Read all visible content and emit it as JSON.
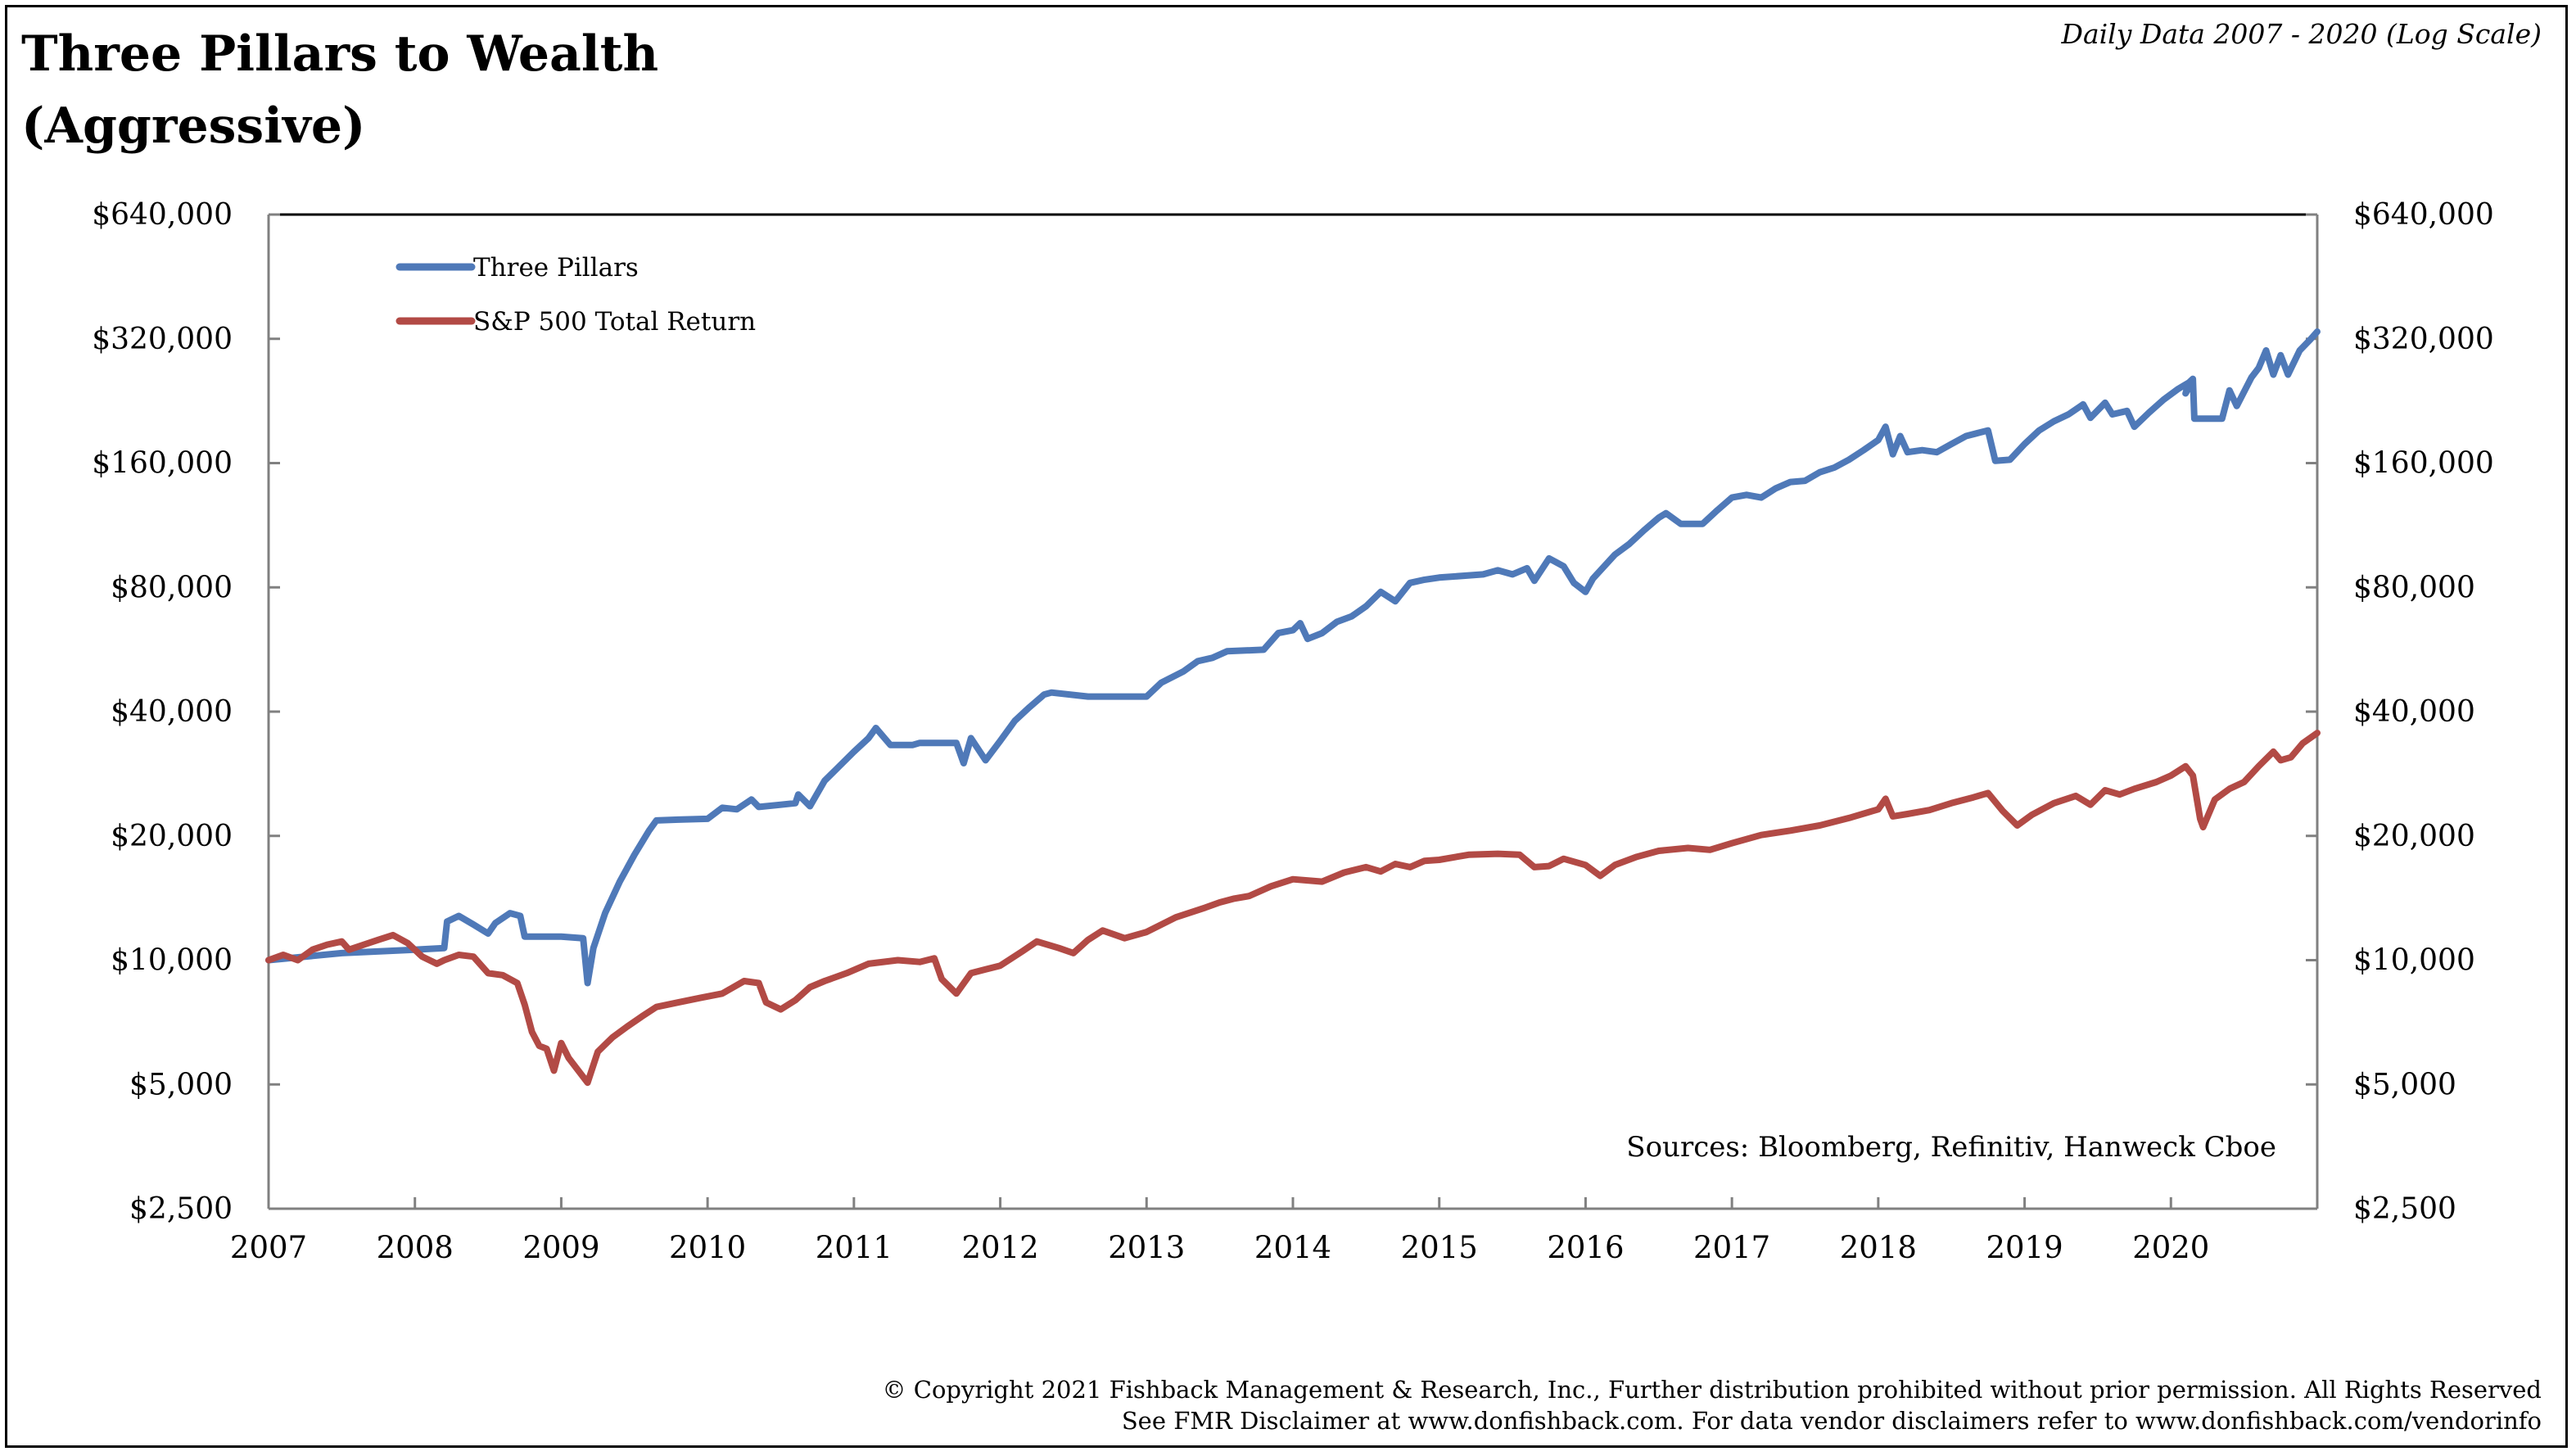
{
  "header": {
    "title_line1": "Three Pillars to Wealth",
    "title_line2": "(Aggressive)",
    "subtitle": "Daily Data 2007 - 2020 (Log Scale)"
  },
  "footer": {
    "line1": "© Copyright 2021 Fishback Management & Research, Inc., Further distribution prohibited without prior permission. All Rights Reserved",
    "line2": "See FMR Disclaimer at www.donfishback.com. For data vendor disclaimers refer to www.donfishback.com/vendorinfo"
  },
  "chart_data": {
    "type": "line",
    "y_scale": "log2",
    "ylim": [
      2500,
      640000
    ],
    "xlim": [
      2007.0,
      2021.0
    ],
    "y_ticks": [
      {
        "value": 2500,
        "label": "$2,500"
      },
      {
        "value": 5000,
        "label": "$5,000"
      },
      {
        "value": 10000,
        "label": "$10,000"
      },
      {
        "value": 20000,
        "label": "$20,000"
      },
      {
        "value": 40000,
        "label": "$40,000"
      },
      {
        "value": 80000,
        "label": "$80,000"
      },
      {
        "value": 160000,
        "label": "$160,000"
      },
      {
        "value": 320000,
        "label": "$320,000"
      },
      {
        "value": 640000,
        "label": "$640,000"
      }
    ],
    "x_ticks": [
      "2007",
      "2008",
      "2009",
      "2010",
      "2011",
      "2012",
      "2013",
      "2014",
      "2015",
      "2016",
      "2017",
      "2018",
      "2019",
      "2020"
    ],
    "legend_position": "top-left",
    "annotation": "Sources: Bloomberg, Refinitiv, Hanweck Cboe",
    "series": [
      {
        "name": "Three Pillars",
        "color": "#4f79b8",
        "points": [
          [
            2007.0,
            10000
          ],
          [
            2007.5,
            10400
          ],
          [
            2008.0,
            10600
          ],
          [
            2008.2,
            10700
          ],
          [
            2008.22,
            12400
          ],
          [
            2008.3,
            12800
          ],
          [
            2008.4,
            12200
          ],
          [
            2008.5,
            11600
          ],
          [
            2008.55,
            12300
          ],
          [
            2008.65,
            13000
          ],
          [
            2008.72,
            12800
          ],
          [
            2008.75,
            11400
          ],
          [
            2009.0,
            11400
          ],
          [
            2009.15,
            11300
          ],
          [
            2009.18,
            8800
          ],
          [
            2009.22,
            10700
          ],
          [
            2009.3,
            13000
          ],
          [
            2009.4,
            15500
          ],
          [
            2009.5,
            18000
          ],
          [
            2009.6,
            20600
          ],
          [
            2009.65,
            21800
          ],
          [
            2009.8,
            21900
          ],
          [
            2010.0,
            22000
          ],
          [
            2010.1,
            23400
          ],
          [
            2010.2,
            23200
          ],
          [
            2010.3,
            24500
          ],
          [
            2010.35,
            23500
          ],
          [
            2010.5,
            23800
          ],
          [
            2010.6,
            24000
          ],
          [
            2010.62,
            25200
          ],
          [
            2010.7,
            23600
          ],
          [
            2010.8,
            27200
          ],
          [
            2010.9,
            29500
          ],
          [
            2011.0,
            32000
          ],
          [
            2011.1,
            34500
          ],
          [
            2011.15,
            36500
          ],
          [
            2011.25,
            33200
          ],
          [
            2011.4,
            33200
          ],
          [
            2011.45,
            33600
          ],
          [
            2011.7,
            33600
          ],
          [
            2011.75,
            30000
          ],
          [
            2011.8,
            34500
          ],
          [
            2011.9,
            30500
          ],
          [
            2012.0,
            34000
          ],
          [
            2012.1,
            38000
          ],
          [
            2012.2,
            41000
          ],
          [
            2012.3,
            44000
          ],
          [
            2012.35,
            44500
          ],
          [
            2012.6,
            43500
          ],
          [
            2013.0,
            43500
          ],
          [
            2013.1,
            47000
          ],
          [
            2013.25,
            50000
          ],
          [
            2013.35,
            53000
          ],
          [
            2013.45,
            54000
          ],
          [
            2013.55,
            56000
          ],
          [
            2013.8,
            56500
          ],
          [
            2013.9,
            62000
          ],
          [
            2014.0,
            63000
          ],
          [
            2014.05,
            65500
          ],
          [
            2014.1,
            60000
          ],
          [
            2014.2,
            62000
          ],
          [
            2014.3,
            66000
          ],
          [
            2014.4,
            68000
          ],
          [
            2014.5,
            72000
          ],
          [
            2014.6,
            78000
          ],
          [
            2014.7,
            74000
          ],
          [
            2014.8,
            82000
          ],
          [
            2014.9,
            83500
          ],
          [
            2015.0,
            84500
          ],
          [
            2015.3,
            86000
          ],
          [
            2015.4,
            88000
          ],
          [
            2015.5,
            86000
          ],
          [
            2015.6,
            89000
          ],
          [
            2015.65,
            83000
          ],
          [
            2015.75,
            94000
          ],
          [
            2015.85,
            90000
          ],
          [
            2015.92,
            82000
          ],
          [
            2016.0,
            78000
          ],
          [
            2016.05,
            84000
          ],
          [
            2016.2,
            96000
          ],
          [
            2016.3,
            102000
          ],
          [
            2016.4,
            110000
          ],
          [
            2016.5,
            118000
          ],
          [
            2016.55,
            121000
          ],
          [
            2016.65,
            114000
          ],
          [
            2016.8,
            114000
          ],
          [
            2016.9,
            123000
          ],
          [
            2017.0,
            132000
          ],
          [
            2017.1,
            134000
          ],
          [
            2017.2,
            132000
          ],
          [
            2017.3,
            139000
          ],
          [
            2017.4,
            144000
          ],
          [
            2017.5,
            145000
          ],
          [
            2017.6,
            152000
          ],
          [
            2017.7,
            156000
          ],
          [
            2017.8,
            163000
          ],
          [
            2017.9,
            172000
          ],
          [
            2018.0,
            182000
          ],
          [
            2018.05,
            196000
          ],
          [
            2018.1,
            168000
          ],
          [
            2018.15,
            186000
          ],
          [
            2018.2,
            170000
          ],
          [
            2018.3,
            172000
          ],
          [
            2018.4,
            170000
          ],
          [
            2018.5,
            178000
          ],
          [
            2018.6,
            186000
          ],
          [
            2018.7,
            190000
          ],
          [
            2018.75,
            192000
          ],
          [
            2018.8,
            162000
          ],
          [
            2018.9,
            163000
          ],
          [
            2019.0,
            178000
          ],
          [
            2019.1,
            192000
          ],
          [
            2019.2,
            202000
          ],
          [
            2019.3,
            210000
          ],
          [
            2019.4,
            222000
          ],
          [
            2019.45,
            206000
          ],
          [
            2019.55,
            224000
          ],
          [
            2019.6,
            210000
          ],
          [
            2019.7,
            214000
          ],
          [
            2019.75,
            196000
          ],
          [
            2019.85,
            212000
          ],
          [
            2019.95,
            228000
          ],
          [
            2020.05,
            242000
          ],
          [
            2020.15,
            254000
          ],
          [
            2020.1,
            236000
          ],
          [
            2020.12,
            250000
          ],
          [
            2020.15,
            256000
          ],
          [
            2020.16,
            205000
          ],
          [
            2020.35,
            205000
          ],
          [
            2020.4,
            240000
          ],
          [
            2020.45,
            220000
          ],
          [
            2020.55,
            258000
          ],
          [
            2020.6,
            272000
          ],
          [
            2020.65,
            300000
          ],
          [
            2020.7,
            262000
          ],
          [
            2020.75,
            292000
          ],
          [
            2020.8,
            262000
          ],
          [
            2020.88,
            300000
          ],
          [
            2020.95,
            318000
          ],
          [
            2021.0,
            333000
          ]
        ]
      },
      {
        "name": "S&P 500 Total Return",
        "color": "#b24a45",
        "points": [
          [
            2007.0,
            10000
          ],
          [
            2007.1,
            10300
          ],
          [
            2007.2,
            10000
          ],
          [
            2007.3,
            10600
          ],
          [
            2007.4,
            10900
          ],
          [
            2007.5,
            11100
          ],
          [
            2007.55,
            10600
          ],
          [
            2007.65,
            10900
          ],
          [
            2007.75,
            11200
          ],
          [
            2007.85,
            11500
          ],
          [
            2007.95,
            11000
          ],
          [
            2008.05,
            10200
          ],
          [
            2008.15,
            9800
          ],
          [
            2008.2,
            10000
          ],
          [
            2008.3,
            10300
          ],
          [
            2008.4,
            10200
          ],
          [
            2008.5,
            9300
          ],
          [
            2008.6,
            9200
          ],
          [
            2008.7,
            8800
          ],
          [
            2008.75,
            7800
          ],
          [
            2008.8,
            6700
          ],
          [
            2008.85,
            6200
          ],
          [
            2008.9,
            6100
          ],
          [
            2008.95,
            5400
          ],
          [
            2009.0,
            6300
          ],
          [
            2009.05,
            5800
          ],
          [
            2009.1,
            5500
          ],
          [
            2009.18,
            5050
          ],
          [
            2009.25,
            6000
          ],
          [
            2009.35,
            6500
          ],
          [
            2009.45,
            6900
          ],
          [
            2009.55,
            7300
          ],
          [
            2009.65,
            7700
          ],
          [
            2009.8,
            7900
          ],
          [
            2009.95,
            8100
          ],
          [
            2010.1,
            8300
          ],
          [
            2010.25,
            8900
          ],
          [
            2010.35,
            8800
          ],
          [
            2010.4,
            7900
          ],
          [
            2010.5,
            7600
          ],
          [
            2010.6,
            8000
          ],
          [
            2010.7,
            8600
          ],
          [
            2010.8,
            8900
          ],
          [
            2010.95,
            9300
          ],
          [
            2011.1,
            9800
          ],
          [
            2011.3,
            10000
          ],
          [
            2011.45,
            9900
          ],
          [
            2011.55,
            10100
          ],
          [
            2011.6,
            9000
          ],
          [
            2011.7,
            8300
          ],
          [
            2011.8,
            9300
          ],
          [
            2011.9,
            9500
          ],
          [
            2012.0,
            9700
          ],
          [
            2012.15,
            10500
          ],
          [
            2012.25,
            11100
          ],
          [
            2012.4,
            10700
          ],
          [
            2012.5,
            10400
          ],
          [
            2012.6,
            11200
          ],
          [
            2012.7,
            11800
          ],
          [
            2012.85,
            11300
          ],
          [
            2013.0,
            11700
          ],
          [
            2013.2,
            12700
          ],
          [
            2013.4,
            13400
          ],
          [
            2013.5,
            13800
          ],
          [
            2013.6,
            14100
          ],
          [
            2013.7,
            14300
          ],
          [
            2013.85,
            15100
          ],
          [
            2014.0,
            15700
          ],
          [
            2014.2,
            15500
          ],
          [
            2014.35,
            16300
          ],
          [
            2014.5,
            16800
          ],
          [
            2014.6,
            16400
          ],
          [
            2014.7,
            17100
          ],
          [
            2014.8,
            16800
          ],
          [
            2014.9,
            17400
          ],
          [
            2015.0,
            17500
          ],
          [
            2015.2,
            18000
          ],
          [
            2015.4,
            18100
          ],
          [
            2015.55,
            18000
          ],
          [
            2015.65,
            16800
          ],
          [
            2015.75,
            16900
          ],
          [
            2015.85,
            17600
          ],
          [
            2016.0,
            17000
          ],
          [
            2016.1,
            16000
          ],
          [
            2016.2,
            17000
          ],
          [
            2016.35,
            17800
          ],
          [
            2016.5,
            18400
          ],
          [
            2016.7,
            18700
          ],
          [
            2016.85,
            18500
          ],
          [
            2017.0,
            19200
          ],
          [
            2017.2,
            20100
          ],
          [
            2017.4,
            20600
          ],
          [
            2017.6,
            21200
          ],
          [
            2017.8,
            22100
          ],
          [
            2018.0,
            23200
          ],
          [
            2018.05,
            24600
          ],
          [
            2018.1,
            22300
          ],
          [
            2018.2,
            22600
          ],
          [
            2018.35,
            23100
          ],
          [
            2018.5,
            24000
          ],
          [
            2018.65,
            24800
          ],
          [
            2018.75,
            25400
          ],
          [
            2018.85,
            23000
          ],
          [
            2018.95,
            21200
          ],
          [
            2019.05,
            22500
          ],
          [
            2019.2,
            24000
          ],
          [
            2019.35,
            25000
          ],
          [
            2019.45,
            23800
          ],
          [
            2019.55,
            25800
          ],
          [
            2019.65,
            25200
          ],
          [
            2019.75,
            26000
          ],
          [
            2019.9,
            27000
          ],
          [
            2020.0,
            28000
          ],
          [
            2020.1,
            29500
          ],
          [
            2020.15,
            28000
          ],
          [
            2020.2,
            22000
          ],
          [
            2020.22,
            21000
          ],
          [
            2020.3,
            24500
          ],
          [
            2020.4,
            26000
          ],
          [
            2020.5,
            27000
          ],
          [
            2020.6,
            29500
          ],
          [
            2020.7,
            32000
          ],
          [
            2020.75,
            30500
          ],
          [
            2020.82,
            31000
          ],
          [
            2020.9,
            33500
          ],
          [
            2021.0,
            35500
          ]
        ]
      }
    ]
  }
}
